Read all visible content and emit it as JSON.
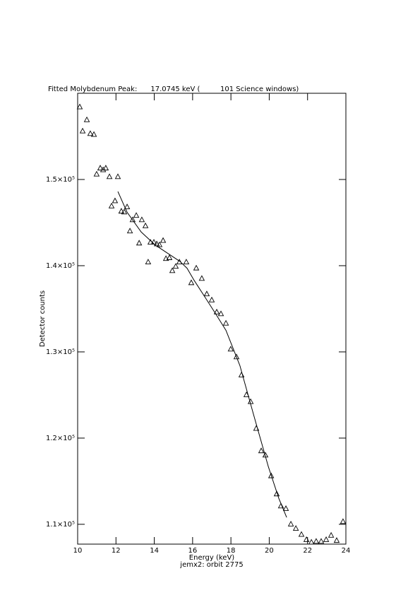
{
  "chart_data": {
    "type": "scatter",
    "title": "Fitted Molybdenum Peak:      17.0745 keV (         101 Science windows)",
    "x_label": "Energy (keV)",
    "y_label": "Detector counts",
    "subtitle": "jemx2: orbit 2775",
    "xlim": [
      10,
      24
    ],
    "xticks": [
      10,
      12,
      14,
      16,
      18,
      20,
      22,
      24
    ],
    "ylim": [
      107700,
      160000
    ],
    "yticks": [
      {
        "value": 110000,
        "label": "1.1×10⁵"
      },
      {
        "value": 120000,
        "label": "1.2×10⁵"
      },
      {
        "value": 130000,
        "label": "1.3×10⁵"
      },
      {
        "value": 140000,
        "label": "1.4×10⁵"
      },
      {
        "value": 150000,
        "label": "1.5×10⁵"
      }
    ],
    "series": [
      {
        "mode": "markers",
        "marker": "triangle",
        "color": "#000000",
        "x": [
          10.11,
          10.26,
          10.48,
          10.66,
          10.85,
          10.99,
          11.18,
          11.33,
          11.47,
          11.66,
          11.77,
          11.95,
          12.1,
          12.28,
          12.43,
          12.58,
          12.73,
          12.87,
          13.06,
          13.21,
          13.35,
          13.54,
          13.68,
          13.8,
          13.98,
          14.13,
          14.27,
          14.46,
          14.61,
          14.79,
          14.94,
          15.12,
          15.31,
          15.67,
          15.93,
          16.19,
          16.48,
          16.74,
          17.0,
          17.26,
          17.48,
          17.74,
          17.99,
          18.29,
          18.55,
          18.81,
          19.03,
          19.32,
          19.58,
          19.8,
          20.1,
          20.39,
          20.61,
          20.87,
          21.13,
          21.39,
          21.68,
          21.94,
          22.2,
          22.45,
          22.71,
          22.97,
          23.23,
          23.52,
          23.85
        ],
        "values": [
          158400,
          155600,
          156900,
          155300,
          155200,
          150600,
          151300,
          151100,
          151300,
          150300,
          146900,
          147500,
          150300,
          146300,
          146200,
          146800,
          144000,
          145300,
          145800,
          142600,
          145300,
          144600,
          140400,
          142700,
          142700,
          142500,
          142400,
          142900,
          140800,
          140900,
          139400,
          139900,
          140400,
          140400,
          138000,
          139700,
          138500,
          136700,
          136000,
          134600,
          134400,
          133300,
          130300,
          129400,
          127300,
          125000,
          124200,
          121100,
          118500,
          118000,
          115600,
          113500,
          112100,
          111800,
          110000,
          109500,
          108800,
          108200,
          107900,
          108000,
          108000,
          108200,
          108700,
          108100,
          110300
        ]
      },
      {
        "mode": "line",
        "color": "#000000",
        "x": [
          12.1,
          12.58,
          13.32,
          14.05,
          14.79,
          15.34,
          15.71,
          16.08,
          16.63,
          17.18,
          17.74,
          18.47,
          19.21,
          19.95,
          20.5,
          20.91
        ],
        "values": [
          148600,
          146200,
          143900,
          142400,
          141300,
          140500,
          139700,
          138300,
          136400,
          134500,
          132500,
          128400,
          122500,
          116700,
          113000,
          110800
        ]
      }
    ]
  }
}
